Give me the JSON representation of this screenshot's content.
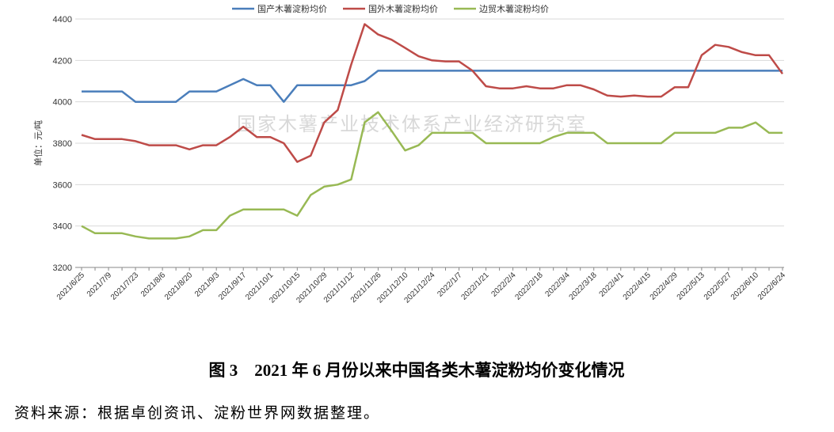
{
  "chart_data": {
    "type": "line",
    "y_label": "单位：元/吨",
    "watermark": "国家木薯产业技术体系产业经济研究室",
    "categories": [
      "2021/6/25",
      null,
      "2021/7/9",
      null,
      "2021/7/23",
      null,
      "2021/8/6",
      null,
      "2021/8/20",
      null,
      "2021/9/3",
      null,
      "2021/9/17",
      null,
      "2021/10/1",
      null,
      "2021/10/15",
      null,
      "2021/10/29",
      null,
      "2021/11/12",
      null,
      "2021/11/26",
      null,
      "2021/12/10",
      null,
      "2021/12/24",
      null,
      "2022/1/7",
      null,
      "2022/1/21",
      null,
      "2022/2/4",
      null,
      "2022/2/18",
      null,
      "2022/3/4",
      null,
      "2022/3/18",
      null,
      "2022/4/1",
      null,
      "2022/4/15",
      null,
      "2022/4/29",
      null,
      "2022/5/13",
      null,
      "2022/5/27",
      null,
      "2022/6/10",
      null,
      "2022/6/24"
    ],
    "series": [
      {
        "name": "国产木薯淀粉均价",
        "color": "#4a7ebb",
        "values": [
          4050,
          4050,
          4050,
          4050,
          4000,
          4000,
          4000,
          4000,
          4050,
          4050,
          4050,
          4080,
          4110,
          4080,
          4080,
          4000,
          4080,
          4080,
          4080,
          4080,
          4080,
          4100,
          4150,
          4150,
          4150,
          4150,
          4150,
          4150,
          4150,
          4150,
          4150,
          4150,
          4150,
          4150,
          4150,
          4150,
          4150,
          4150,
          4150,
          4150,
          4150,
          4150,
          4150,
          4150,
          4150,
          4150,
          4150,
          4150,
          4150,
          4150,
          4150,
          4150,
          4150
        ]
      },
      {
        "name": "国外木薯淀粉均价",
        "color": "#be4b48",
        "values": [
          3840,
          3820,
          3820,
          3820,
          3810,
          3790,
          3790,
          3790,
          3770,
          3790,
          3790,
          3830,
          3880,
          3830,
          3830,
          3800,
          3710,
          3740,
          3900,
          3960,
          4180,
          4375,
          4325,
          4300,
          4260,
          4220,
          4200,
          4195,
          4195,
          4150,
          4075,
          4065,
          4065,
          4075,
          4065,
          4065,
          4080,
          4080,
          4060,
          4030,
          4025,
          4030,
          4025,
          4025,
          4070,
          4070,
          4225,
          4275,
          4265,
          4240,
          4225,
          4225,
          4135
        ]
      },
      {
        "name": "边贸木薯淀粉均价",
        "color": "#98b954",
        "values": [
          3400,
          3365,
          3365,
          3365,
          3350,
          3340,
          3340,
          3340,
          3350,
          3380,
          3380,
          3450,
          3480,
          3480,
          3480,
          3480,
          3450,
          3550,
          3590,
          3600,
          3625,
          3900,
          3950,
          3860,
          3765,
          3790,
          3850,
          3850,
          3850,
          3850,
          3800,
          3800,
          3800,
          3800,
          3800,
          3830,
          3850,
          3850,
          3850,
          3800,
          3800,
          3800,
          3800,
          3800,
          3850,
          3850,
          3850,
          3850,
          3875,
          3875,
          3900,
          3850,
          3850
        ]
      }
    ],
    "ylim": [
      3200,
      4400
    ],
    "yticks": [
      3200,
      3400,
      3600,
      3800,
      4000,
      4200,
      4400
    ],
    "grid": true,
    "legend": "top"
  },
  "caption": "图 3　2021 年 6 月份以来中国各类木薯淀粉均价变化情况",
  "source": "资料来源：根据卓创资讯、淀粉世界网数据整理。"
}
